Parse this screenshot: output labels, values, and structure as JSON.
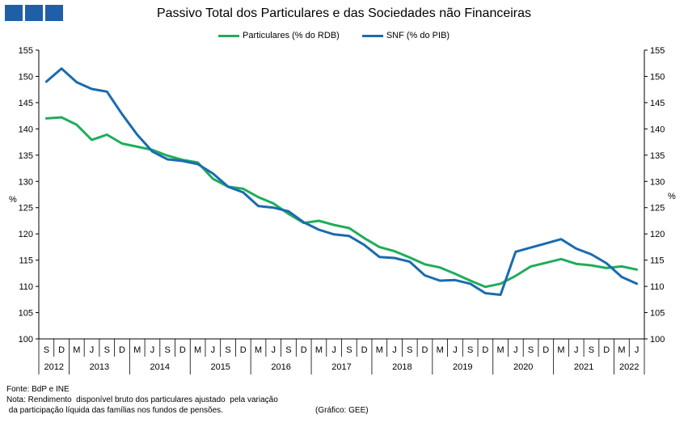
{
  "logo": {
    "color": "#1f5fa8"
  },
  "chart_data": {
    "type": "line",
    "title": "Passivo Total dos Particulares e das Sociedades não Financeiras",
    "ylabel_left": "%",
    "ylabel_right": "%",
    "ylim": [
      100,
      155
    ],
    "yticks": [
      100,
      105,
      110,
      115,
      120,
      125,
      130,
      135,
      140,
      145,
      150,
      155
    ],
    "legend_position": "top-center",
    "grid": false,
    "x": [
      "S",
      "D",
      "M",
      "J",
      "S",
      "D",
      "M",
      "J",
      "S",
      "D",
      "M",
      "J",
      "S",
      "D",
      "M",
      "J",
      "S",
      "D",
      "M",
      "J",
      "S",
      "D",
      "M",
      "J",
      "S",
      "D",
      "M",
      "J",
      "S",
      "D",
      "M",
      "J",
      "S",
      "D",
      "M",
      "J",
      "S",
      "D",
      "M",
      "J"
    ],
    "year_groups": [
      {
        "label": "2012",
        "count": 2
      },
      {
        "label": "2013",
        "count": 4
      },
      {
        "label": "2014",
        "count": 4
      },
      {
        "label": "2015",
        "count": 4
      },
      {
        "label": "2016",
        "count": 4
      },
      {
        "label": "2017",
        "count": 4
      },
      {
        "label": "2018",
        "count": 4
      },
      {
        "label": "2019",
        "count": 4
      },
      {
        "label": "2020",
        "count": 4
      },
      {
        "label": "2021",
        "count": 4
      },
      {
        "label": "2022",
        "count": 2
      }
    ],
    "series": [
      {
        "name": "Particulares (% do RDB)",
        "color": "#1fad5a",
        "values": [
          142.0,
          142.2,
          140.8,
          137.9,
          138.9,
          137.2,
          136.6,
          136.0,
          134.9,
          134.1,
          133.6,
          130.5,
          129.0,
          128.6,
          127.0,
          125.8,
          123.8,
          122.1,
          122.5,
          121.7,
          121.1,
          119.2,
          117.5,
          116.7,
          115.5,
          114.2,
          113.6,
          112.4,
          111.1,
          109.9,
          110.5,
          112.0,
          113.8,
          114.5,
          115.2,
          114.3,
          114.0,
          113.5,
          113.8,
          113.2
        ]
      },
      {
        "name": "SNF (% do PIB)",
        "color": "#1a6bb0",
        "values": [
          149.0,
          151.5,
          148.9,
          147.6,
          147.1,
          142.8,
          138.9,
          135.7,
          134.2,
          133.9,
          133.3,
          131.5,
          129.0,
          127.9,
          125.3,
          125.0,
          124.3,
          122.2,
          120.8,
          119.9,
          119.6,
          117.9,
          115.6,
          115.4,
          114.7,
          112.1,
          111.1,
          111.2,
          110.5,
          108.7,
          108.4,
          116.6,
          117.4,
          118.2,
          119.0,
          117.2,
          116.1,
          114.4,
          111.8,
          110.5
        ]
      }
    ]
  },
  "footer": {
    "source": "Fonte: BdP e INE",
    "note_line1": "Nota: Rendimento  disponível bruto dos particulares ajustado  pela variação",
    "note_line2": " da participação líquida das famílias nos fundos de pensões.",
    "credit": "(Gráfico: GEE)"
  }
}
